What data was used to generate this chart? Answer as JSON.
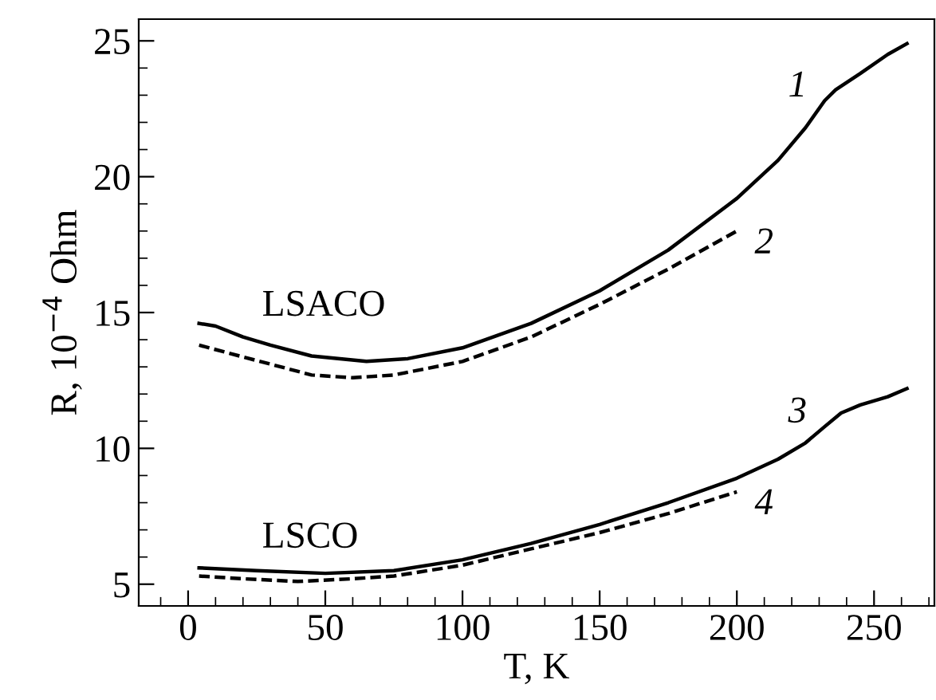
{
  "chart_data": {
    "type": "line",
    "xlabel": "T, K",
    "ylabel": "R, 10$^{−4}$ Ohm",
    "xlim": [
      -18,
      272
    ],
    "ylim": [
      4.2,
      25.8
    ],
    "xticks": [
      0,
      50,
      100,
      150,
      200,
      250
    ],
    "yticks": [
      5,
      10,
      15,
      20,
      25
    ],
    "grid": false,
    "legend": false,
    "marker": "none",
    "series": [
      {
        "name": "1",
        "color": "#000000",
        "line_style": "solid",
        "x": [
          4,
          10,
          20,
          30,
          45,
          65,
          80,
          100,
          125,
          150,
          175,
          200,
          215,
          225,
          232,
          236,
          245,
          255,
          262
        ],
        "values": [
          14.6,
          14.5,
          14.1,
          13.8,
          13.4,
          13.2,
          13.3,
          13.7,
          14.6,
          15.8,
          17.3,
          19.2,
          20.6,
          21.8,
          22.8,
          23.2,
          23.8,
          24.5,
          24.9
        ]
      },
      {
        "name": "2",
        "color": "#000000",
        "line_style": "dashed",
        "x": [
          4,
          15,
          30,
          45,
          60,
          75,
          100,
          125,
          150,
          175,
          200
        ],
        "values": [
          13.8,
          13.5,
          13.1,
          12.7,
          12.6,
          12.7,
          13.2,
          14.1,
          15.3,
          16.6,
          18.0
        ]
      },
      {
        "name": "3",
        "color": "#000000",
        "line_style": "solid",
        "x": [
          4,
          25,
          50,
          75,
          100,
          125,
          150,
          175,
          200,
          215,
          225,
          232,
          238,
          245,
          255,
          262
        ],
        "values": [
          5.6,
          5.5,
          5.4,
          5.5,
          5.9,
          6.5,
          7.2,
          8.0,
          8.9,
          9.6,
          10.2,
          10.8,
          11.3,
          11.6,
          11.9,
          12.2
        ]
      },
      {
        "name": "4",
        "color": "#000000",
        "line_style": "dashed",
        "x": [
          4,
          20,
          40,
          60,
          75,
          100,
          125,
          150,
          175,
          200
        ],
        "values": [
          5.3,
          5.2,
          5.1,
          5.2,
          5.3,
          5.7,
          6.3,
          6.9,
          7.6,
          8.4
        ]
      }
    ],
    "annotations": [
      "LSACO",
      "LSCO"
    ]
  }
}
